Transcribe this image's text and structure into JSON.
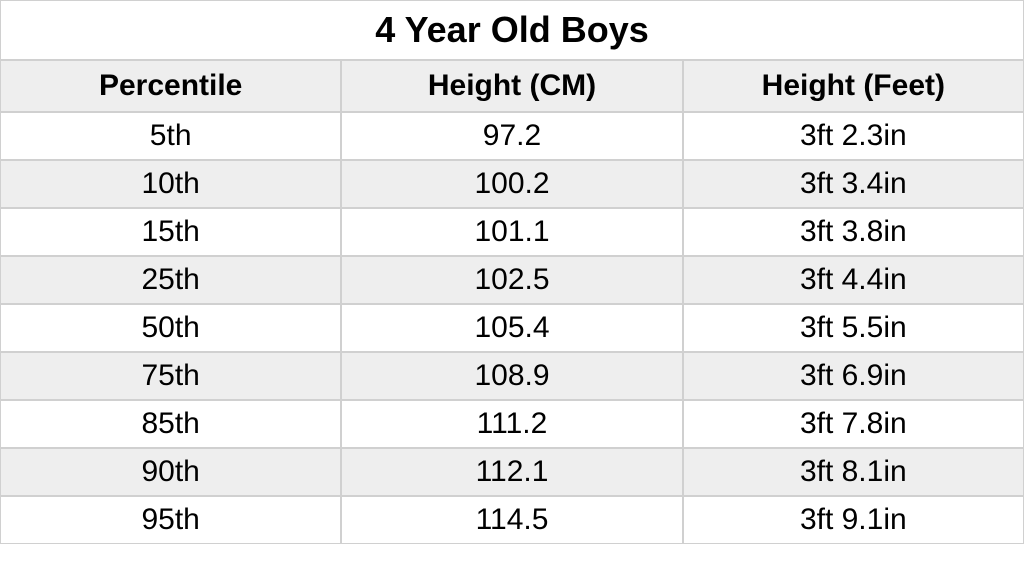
{
  "table": {
    "title": "4 Year Old Boys",
    "title_fontsize": 36,
    "title_fontweight": "bold",
    "columns": [
      "Percentile",
      "Height (CM)",
      "Height (Feet)"
    ],
    "header_fontsize": 30,
    "header_fontweight": "bold",
    "header_background": "#eeeeee",
    "data_fontsize": 30,
    "row_even_background": "#ffffff",
    "row_odd_background": "#eeeeee",
    "border_color": "#d0d0d0",
    "text_color": "#000000",
    "rows": [
      {
        "percentile": "5th",
        "height_cm": "97.2",
        "height_feet": "3ft 2.3in"
      },
      {
        "percentile": "10th",
        "height_cm": "100.2",
        "height_feet": "3ft 3.4in"
      },
      {
        "percentile": "15th",
        "height_cm": "101.1",
        "height_feet": "3ft 3.8in"
      },
      {
        "percentile": "25th",
        "height_cm": "102.5",
        "height_feet": "3ft 4.4in"
      },
      {
        "percentile": "50th",
        "height_cm": "105.4",
        "height_feet": "3ft 5.5in"
      },
      {
        "percentile": "75th",
        "height_cm": "108.9",
        "height_feet": "3ft 6.9in"
      },
      {
        "percentile": "85th",
        "height_cm": "111.2",
        "height_feet": "3ft 7.8in"
      },
      {
        "percentile": "90th",
        "height_cm": "112.1",
        "height_feet": "3ft 8.1in"
      },
      {
        "percentile": "95th",
        "height_cm": "114.5",
        "height_feet": "3ft 9.1in"
      }
    ]
  }
}
